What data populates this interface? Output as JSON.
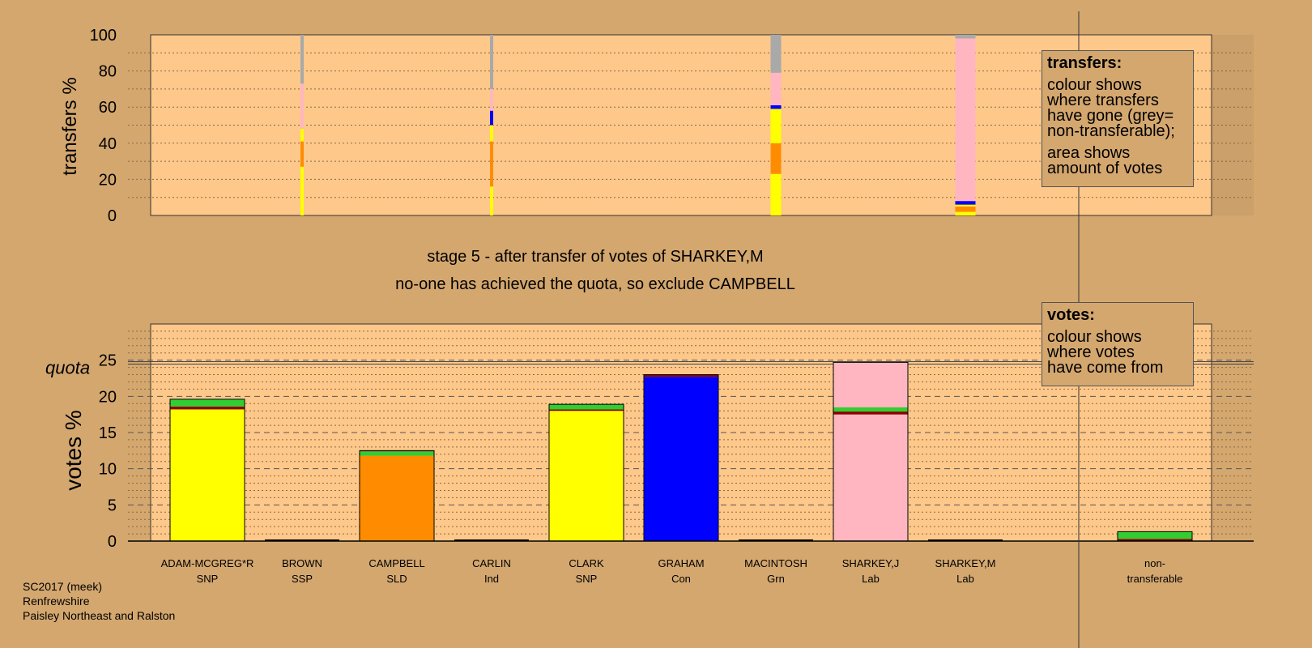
{
  "chart_data": {
    "type": "bar",
    "transfers": {
      "ylabel": "transfers %",
      "ylim": [
        0,
        100
      ],
      "yticks": [
        0,
        20,
        40,
        60,
        80,
        100
      ],
      "columns": [
        {
          "x": "BROWN",
          "segments": [
            {
              "color": "#ffff00",
              "value": 27
            },
            {
              "color": "#ff8c00",
              "value": 14
            },
            {
              "color": "#ffff00",
              "value": 7
            },
            {
              "color": "#ffb6c1",
              "value": 25
            },
            {
              "color": "#a9a9a9",
              "value": 27
            }
          ]
        },
        {
          "x": "CARLIN",
          "segments": [
            {
              "color": "#ffff00",
              "value": 16
            },
            {
              "color": "#ff8c00",
              "value": 25
            },
            {
              "color": "#ffff00",
              "value": 9
            },
            {
              "color": "#0000ff",
              "value": 8
            },
            {
              "color": "#ffb6c1",
              "value": 12
            },
            {
              "color": "#a9a9a9",
              "value": 30
            }
          ]
        },
        {
          "x": "MACINTOSH",
          "segments": [
            {
              "color": "#ffff00",
              "value": 23
            },
            {
              "color": "#ff8c00",
              "value": 17
            },
            {
              "color": "#ffff00",
              "value": 19
            },
            {
              "color": "#0000ff",
              "value": 2
            },
            {
              "color": "#ffb6c1",
              "value": 18
            },
            {
              "color": "#a9a9a9",
              "value": 21
            }
          ]
        },
        {
          "x": "SHARKEY,M",
          "segments": [
            {
              "color": "#ffff00",
              "value": 2
            },
            {
              "color": "#ff8c00",
              "value": 3
            },
            {
              "color": "#ffff00",
              "value": 1
            },
            {
              "color": "#0000ff",
              "value": 2
            },
            {
              "color": "#ffb6c1",
              "value": 90
            },
            {
              "color": "#a9a9a9",
              "value": 2
            }
          ]
        }
      ]
    },
    "votes": {
      "ylabel": "votes %",
      "ylim": [
        0,
        30
      ],
      "yticks": [
        0,
        5,
        10,
        15,
        20,
        25
      ],
      "quota": 24.8,
      "quota_label": "quota",
      "candidates": [
        {
          "name": "ADAM-MCGREG*R",
          "party": "SNP",
          "segments": [
            {
              "color": "#ffff00",
              "value": 18.2
            },
            {
              "color": "#8b0000",
              "value": 0.4
            },
            {
              "color": "#32cd32",
              "value": 1.0
            }
          ]
        },
        {
          "name": "BROWN",
          "party": "SSP",
          "segments": []
        },
        {
          "name": "CAMPBELL",
          "party": "SLD",
          "segments": [
            {
              "color": "#ff8c00",
              "value": 11.8
            },
            {
              "color": "#32cd32",
              "value": 0.6
            },
            {
              "color": "#8b0000",
              "value": 0.1
            }
          ]
        },
        {
          "name": "CARLIN",
          "party": "Ind",
          "segments": []
        },
        {
          "name": "CLARK",
          "party": "SNP",
          "segments": [
            {
              "color": "#ffff00",
              "value": 18.0
            },
            {
              "color": "#8b0000",
              "value": 0.2
            },
            {
              "color": "#32cd32",
              "value": 0.7
            }
          ]
        },
        {
          "name": "GRAHAM",
          "party": "Con",
          "segments": [
            {
              "color": "#0000ff",
              "value": 22.7
            },
            {
              "color": "#8b0000",
              "value": 0.3
            }
          ]
        },
        {
          "name": "MACINTOSH",
          "party": "Grn",
          "segments": []
        },
        {
          "name": "SHARKEY,J",
          "party": "Lab",
          "segments": [
            {
              "color": "#ffb6c1",
              "value": 17.5
            },
            {
              "color": "#8b0000",
              "value": 0.4
            },
            {
              "color": "#32cd32",
              "value": 0.6
            },
            {
              "color": "#ffb6c1",
              "value": 6.2
            }
          ]
        },
        {
          "name": "SHARKEY,M",
          "party": "Lab",
          "segments": []
        },
        {
          "name": "non-",
          "party": "transferable",
          "segments": [
            {
              "color": "#8b0000",
              "value": 0.3
            },
            {
              "color": "#32cd32",
              "value": 1.0
            }
          ]
        }
      ]
    }
  },
  "stage_title": "stage 5 - after transfer of votes of SHARKEY,M",
  "stage_subtitle": "no-one has achieved the quota, so exclude CAMPBELL",
  "legend_transfers": {
    "title": "transfers:",
    "lines_a": [
      "colour shows",
      "where transfers",
      "have gone (grey=",
      "non-transferable);"
    ],
    "lines_b": [
      "area shows",
      "amount of votes"
    ]
  },
  "legend_votes": {
    "title": "votes:",
    "lines": [
      "colour shows",
      "where votes",
      "have come from"
    ]
  },
  "caption": [
    "SC2017 (meek)",
    "Renfrewshire",
    "Paisley Northeast and Ralston"
  ],
  "colors": {
    "background": "#d4a76f",
    "plot_area": "#fdc88a"
  }
}
